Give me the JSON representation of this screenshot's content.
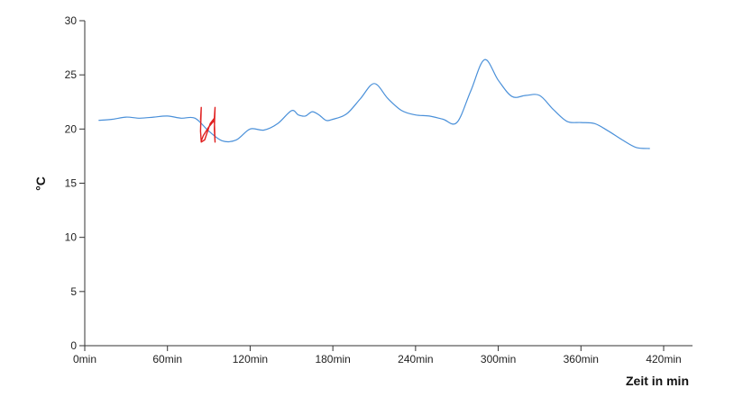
{
  "chart_data": {
    "type": "line",
    "xlabel": "Zeit in min",
    "ylabel": "°C",
    "xlim": [
      0,
      420
    ],
    "ylim": [
      0,
      30
    ],
    "x_ticks": [
      {
        "value": 0,
        "label": "0min"
      },
      {
        "value": 60,
        "label": "60min"
      },
      {
        "value": 120,
        "label": "120min"
      },
      {
        "value": 180,
        "label": "180min"
      },
      {
        "value": 240,
        "label": "240min"
      },
      {
        "value": 300,
        "label": "300min"
      },
      {
        "value": 360,
        "label": "360min"
      },
      {
        "value": 420,
        "label": "420min"
      }
    ],
    "y_ticks": [
      {
        "value": 0,
        "label": "0"
      },
      {
        "value": 5,
        "label": "5"
      },
      {
        "value": 10,
        "label": "10"
      },
      {
        "value": 15,
        "label": "15"
      },
      {
        "value": 20,
        "label": "20"
      },
      {
        "value": 25,
        "label": "25"
      },
      {
        "value": 30,
        "label": "30"
      }
    ],
    "grid": false,
    "series": [
      {
        "color": "#4a90d9",
        "x": [
          10,
          20,
          30,
          40,
          50,
          60,
          70,
          80,
          90,
          100,
          110,
          120,
          130,
          140,
          150,
          155,
          160,
          165,
          170,
          175,
          180,
          190,
          200,
          210,
          220,
          230,
          240,
          250,
          260,
          270,
          280,
          290,
          300,
          310,
          320,
          330,
          340,
          350,
          360,
          370,
          380,
          390,
          400,
          410
        ],
        "y": [
          20.8,
          20.9,
          21.1,
          21.0,
          21.1,
          21.2,
          21.0,
          21.0,
          19.8,
          18.9,
          19.0,
          20.0,
          19.9,
          20.5,
          21.7,
          21.3,
          21.2,
          21.6,
          21.3,
          20.8,
          20.9,
          21.4,
          22.8,
          24.2,
          22.8,
          21.7,
          21.3,
          21.2,
          20.9,
          20.6,
          23.5,
          26.4,
          24.5,
          23.0,
          23.1,
          23.1,
          21.8,
          20.7,
          20.6,
          20.5,
          19.8,
          19.0,
          18.3,
          18.2
        ]
      },
      {
        "color": "#e02020",
        "x": [
          84,
          84.5,
          84,
          84.5,
          87,
          91,
          94,
          94.5,
          94,
          94.5,
          94,
          90,
          86,
          84.5
        ],
        "y": [
          20.8,
          22.0,
          19.8,
          18.8,
          19.0,
          20.5,
          21.0,
          22.0,
          20.0,
          18.8,
          20.8,
          20.2,
          19.4,
          18.9
        ]
      }
    ]
  }
}
